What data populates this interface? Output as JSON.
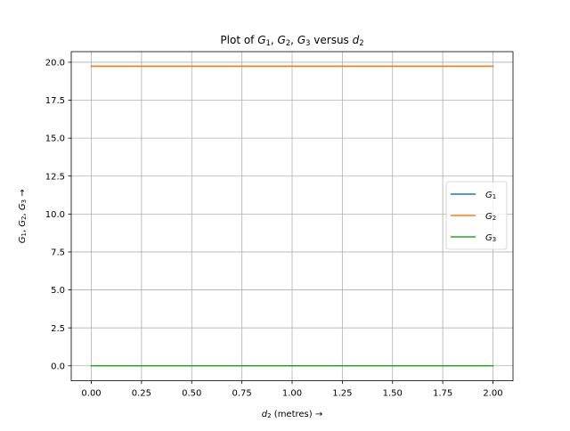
{
  "chart_data": {
    "type": "line",
    "title": {
      "prefix": "Plot of ",
      "parts": [
        {
          "kind": "var",
          "base": "G",
          "sub": "1"
        },
        {
          "kind": "text",
          "text": ", "
        },
        {
          "kind": "var",
          "base": "G",
          "sub": "2"
        },
        {
          "kind": "text",
          "text": ", "
        },
        {
          "kind": "var",
          "base": "G",
          "sub": "3"
        },
        {
          "kind": "text",
          "text": " versus "
        },
        {
          "kind": "var",
          "base": "d",
          "sub": "2"
        }
      ]
    },
    "xlabel": {
      "parts": [
        {
          "kind": "var",
          "base": "d",
          "sub": "2"
        },
        {
          "kind": "text",
          "text": " (metres) →"
        }
      ]
    },
    "ylabel": {
      "parts": [
        {
          "kind": "var",
          "base": "G",
          "sub": "1"
        },
        {
          "kind": "text",
          "text": ", "
        },
        {
          "kind": "var",
          "base": "G",
          "sub": "2"
        },
        {
          "kind": "text",
          "text": ", "
        },
        {
          "kind": "var",
          "base": "G",
          "sub": "3"
        },
        {
          "kind": "text",
          "text": " →"
        }
      ]
    },
    "xlim": [
      -0.1,
      2.1
    ],
    "ylim": [
      -0.987,
      20.7
    ],
    "x_ticks": [
      0.0,
      0.25,
      0.5,
      0.75,
      1.0,
      1.25,
      1.5,
      1.75,
      2.0
    ],
    "x_tick_labels": [
      "0.00",
      "0.25",
      "0.50",
      "0.75",
      "1.00",
      "1.25",
      "1.50",
      "1.75",
      "2.00"
    ],
    "y_ticks": [
      0.0,
      2.5,
      5.0,
      7.5,
      10.0,
      12.5,
      15.0,
      17.5,
      20.0
    ],
    "y_tick_labels": [
      "0.0",
      "2.5",
      "5.0",
      "7.5",
      "10.0",
      "12.5",
      "15.0",
      "17.5",
      "20.0"
    ],
    "grid": true,
    "legend_position": "right",
    "series": [
      {
        "name": "G1",
        "label_base": "G",
        "label_sub": "1",
        "color": "#1f77b4",
        "x": [
          0.0,
          2.0
        ],
        "y": [
          19.74,
          19.74
        ]
      },
      {
        "name": "G2",
        "label_base": "G",
        "label_sub": "2",
        "color": "#ff7f0e",
        "x": [
          0.0,
          2.0
        ],
        "y": [
          19.74,
          19.74
        ]
      },
      {
        "name": "G3",
        "label_base": "G",
        "label_sub": "3",
        "color": "#2ca02c",
        "x": [
          0.0,
          2.0
        ],
        "y": [
          0.0,
          0.0
        ]
      }
    ]
  }
}
